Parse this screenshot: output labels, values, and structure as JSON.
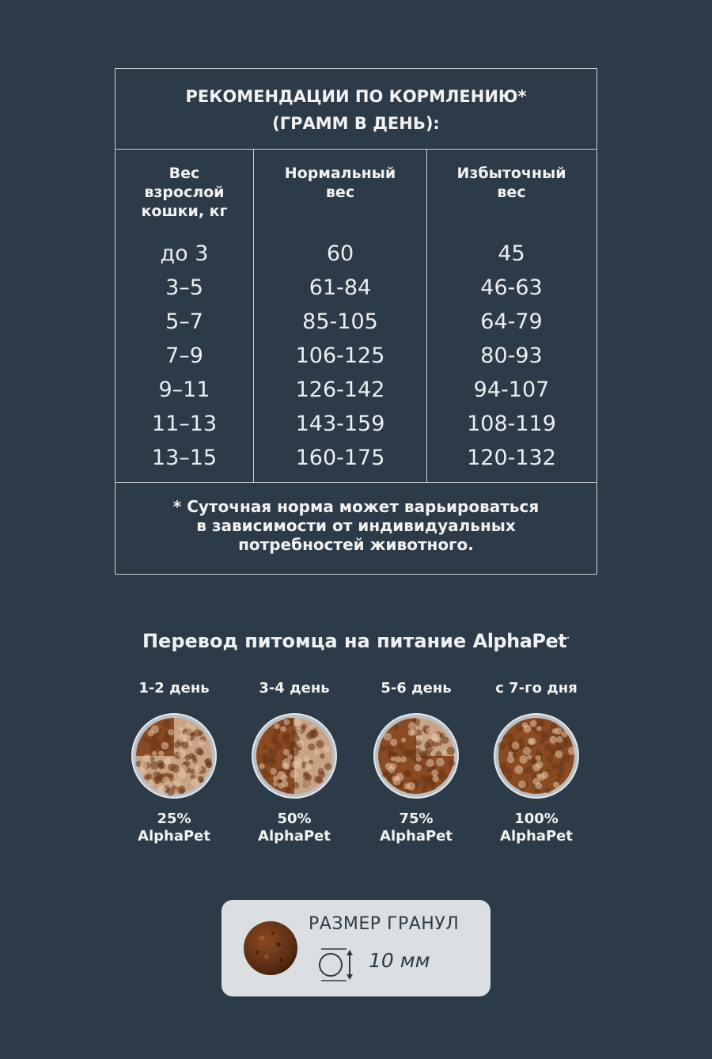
{
  "feeding_table": {
    "title_line1": "РЕКОМЕНДАЦИИ ПО КОРМЛЕНИЮ*",
    "title_line2": "(ГРАММ В ДЕНЬ):",
    "columns": [
      {
        "header": [
          "Вес",
          "взрослой",
          "кошки, кг"
        ],
        "values": [
          "до 3",
          "3–5",
          "5–7",
          "7–9",
          "9–11",
          "11–13",
          "13–15"
        ]
      },
      {
        "header": [
          "Нормальный",
          "вес"
        ],
        "values": [
          "60",
          "61-84",
          "85-105",
          "106-125",
          "126-142",
          "143-159",
          "160-175"
        ]
      },
      {
        "header": [
          "Избыточный",
          "вес"
        ],
        "values": [
          "45",
          "46-63",
          "64-79",
          "80-93",
          "94-107",
          "108-119",
          "120-132"
        ]
      }
    ],
    "footnote": [
      "* Суточная норма может варьироваться",
      "в зависимости от индивидуальных",
      "потребностей животного."
    ]
  },
  "transfer": {
    "title": "Перевод питомца на питание",
    "brand": "AlphaPet",
    "brand_mark": "·",
    "stages": [
      {
        "day": "1-2 день",
        "percent": "25%",
        "brand": "AlphaPet",
        "fraction": 0.25
      },
      {
        "day": "3-4 день",
        "percent": "50%",
        "brand": "AlphaPet",
        "fraction": 0.5
      },
      {
        "day": "5-6 день",
        "percent": "75%",
        "brand": "AlphaPet",
        "fraction": 0.75
      },
      {
        "day": "с 7-го дня",
        "percent": "100%",
        "brand": "AlphaPet",
        "fraction": 1.0
      }
    ]
  },
  "granule": {
    "title": "РАЗМЕР ГРАНУЛ",
    "size": "10 мм"
  },
  "colors": {
    "background": "#2c3b47",
    "kibble_dark": "#8a4a22",
    "kibble_light": "#c9a484",
    "card": "#dcdfe2"
  }
}
